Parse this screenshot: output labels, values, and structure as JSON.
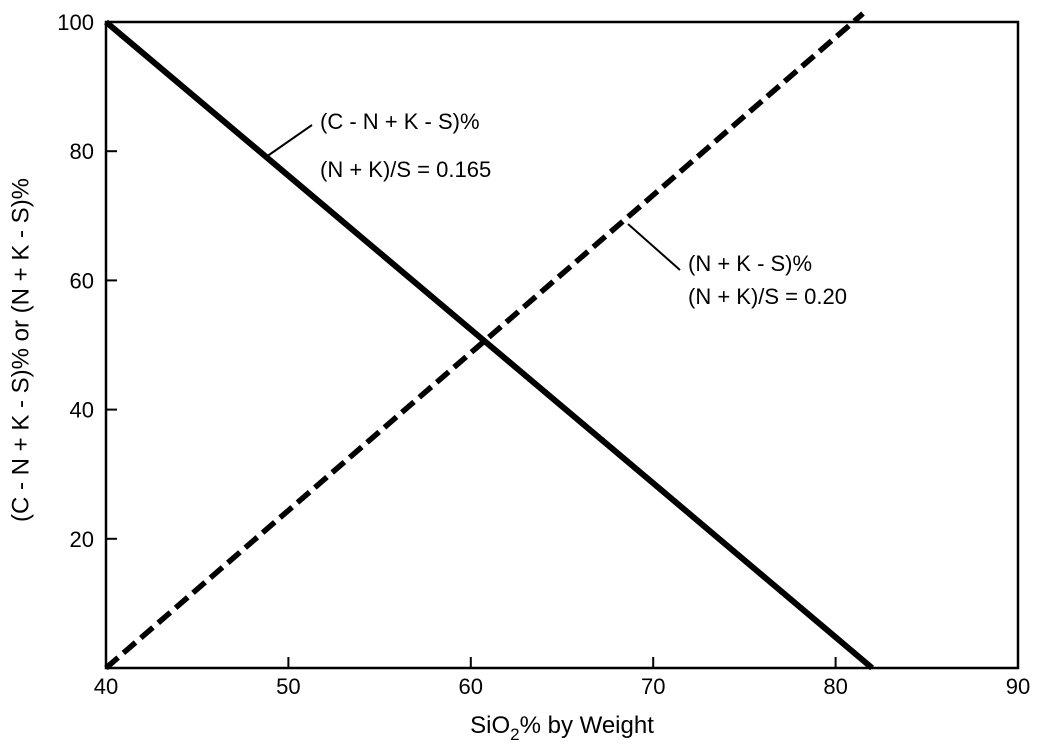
{
  "chart_data": {
    "type": "line",
    "xlabel": {
      "pre": "SiO",
      "sub": "2",
      "post": "% by Weight"
    },
    "ylabel": "(C - N + K - S)% or (N + K - S)%",
    "xlim": [
      40,
      90
    ],
    "ylim": [
      0,
      100
    ],
    "x_ticks": [
      "40",
      "50",
      "60",
      "70",
      "80",
      "90"
    ],
    "y_ticks": [
      "20",
      "40",
      "60",
      "80",
      "100"
    ],
    "grid": false,
    "series": [
      {
        "name": "(C - N + K - S)%",
        "style": "solid",
        "points": [
          [
            40,
            100
          ],
          [
            50,
            76.2
          ],
          [
            60,
            52.4
          ],
          [
            70,
            28.6
          ],
          [
            82,
            0
          ]
        ],
        "annotation": [
          "(C - N + K - S)%",
          "(N + K)/S = 0.165"
        ]
      },
      {
        "name": "(N + K - S)%",
        "style": "dashed",
        "points": [
          [
            40,
            0
          ],
          [
            50,
            24.4
          ],
          [
            60,
            48.8
          ],
          [
            70,
            73.2
          ],
          [
            81.5,
            101.3
          ]
        ],
        "annotation": [
          "(N + K - S)%",
          "(N + K)/S = 0.20"
        ]
      }
    ]
  },
  "colors": {
    "line": "#000000",
    "background": "#ffffff"
  }
}
